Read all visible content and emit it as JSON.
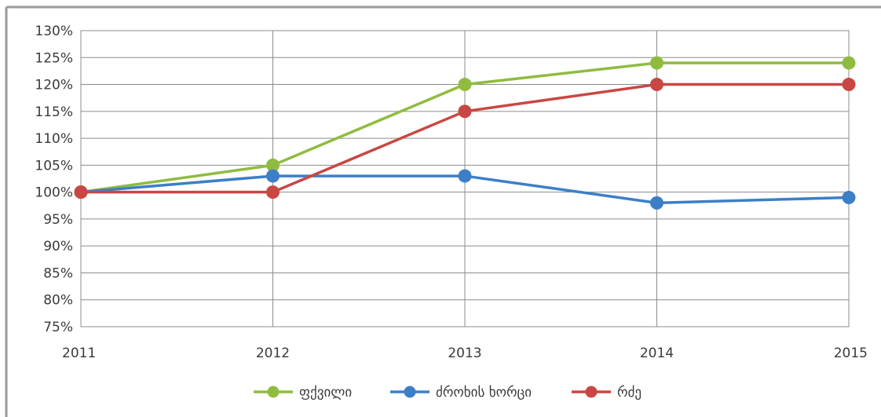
{
  "chart_data": {
    "type": "line",
    "title": "",
    "xlabel": "",
    "ylabel": "",
    "x": [
      "2011",
      "2012",
      "2013",
      "2014",
      "2015"
    ],
    "y_ticks": [
      "75%",
      "80%",
      "85%",
      "90%",
      "95%",
      "100%",
      "105%",
      "110%",
      "115%",
      "120%",
      "125%",
      "130%"
    ],
    "ylim": [
      75,
      130
    ],
    "y_unit": "%",
    "grid": true,
    "legend_position": "bottom",
    "series": [
      {
        "name": "ფქვილი",
        "color": "#8fbc3f",
        "values": [
          100,
          105,
          120,
          124,
          124
        ]
      },
      {
        "name": "ძროხის ხორცი",
        "color": "#3c7fc7",
        "values": [
          100,
          103,
          103,
          98,
          99
        ]
      },
      {
        "name": "რძე",
        "color": "#c94743",
        "values": [
          100,
          100,
          115,
          120,
          120
        ]
      }
    ]
  }
}
